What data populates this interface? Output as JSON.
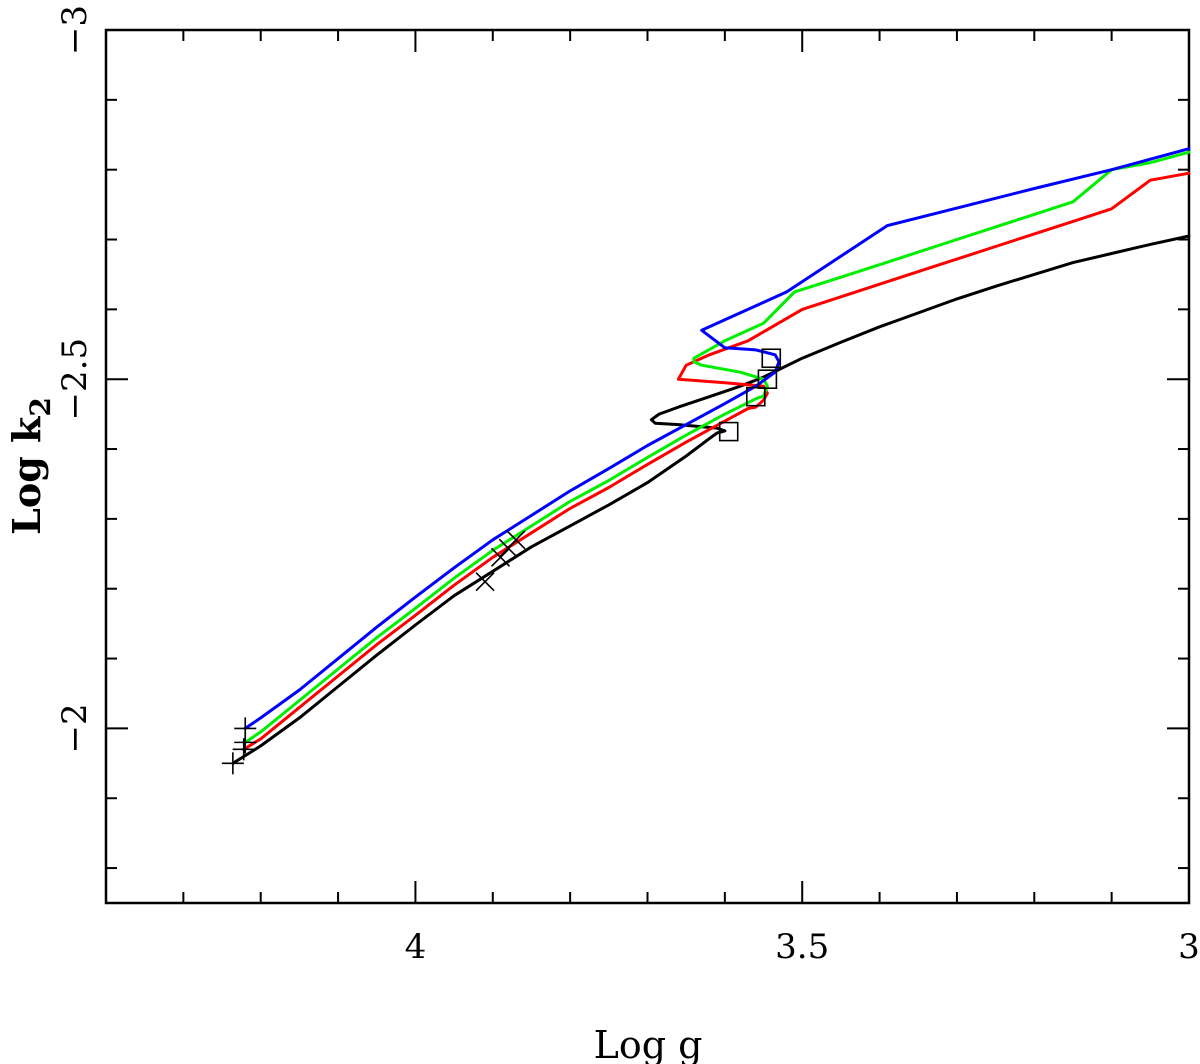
{
  "chart_data": {
    "type": "line",
    "title": "",
    "xlabel": "Log g",
    "ylabel": {
      "base": "Log k",
      "sub": "2"
    },
    "xlim": [
      4.4,
      3.0
    ],
    "ylim": [
      -1.75,
      -3.0
    ],
    "x_major_ticks": [
      4,
      3.5,
      3
    ],
    "x_major_tick_labels": [
      "4",
      "3.5",
      "3"
    ],
    "x_minor_ticks": [
      4.3,
      4.2,
      4.1,
      3.9,
      3.8,
      3.7,
      3.6,
      3.4,
      3.3,
      3.2,
      3.1
    ],
    "y_major_ticks": [
      -2,
      -2.5,
      -3
    ],
    "y_major_tick_labels": [
      "−2",
      "−2.5",
      "−3"
    ],
    "y_minor_ticks": [
      -1.8,
      -1.9,
      -2.1,
      -2.2,
      -2.3,
      -2.4,
      -2.6,
      -2.7,
      -2.8,
      -2.9
    ],
    "grid": false,
    "series": [
      {
        "color": "#000000",
        "points": [
          [
            4.236,
            -1.95
          ],
          [
            4.2,
            -1.975
          ],
          [
            4.15,
            -2.015
          ],
          [
            4.1,
            -2.06
          ],
          [
            4.05,
            -2.105
          ],
          [
            4.0,
            -2.148
          ],
          [
            3.95,
            -2.19
          ],
          [
            3.9,
            -2.225
          ],
          [
            3.85,
            -2.26
          ],
          [
            3.8,
            -2.29
          ],
          [
            3.75,
            -2.32
          ],
          [
            3.7,
            -2.352
          ],
          [
            3.65,
            -2.39
          ],
          [
            3.62,
            -2.415
          ],
          [
            3.61,
            -2.423
          ],
          [
            3.6,
            -2.426
          ],
          [
            3.61,
            -2.43
          ],
          [
            3.66,
            -2.435
          ],
          [
            3.69,
            -2.437
          ],
          [
            3.695,
            -2.442
          ],
          [
            3.685,
            -2.45
          ],
          [
            3.66,
            -2.46
          ],
          [
            3.62,
            -2.475
          ],
          [
            3.58,
            -2.49
          ],
          [
            3.55,
            -2.503
          ],
          [
            3.5,
            -2.53
          ],
          [
            3.45,
            -2.553
          ],
          [
            3.4,
            -2.575
          ],
          [
            3.35,
            -2.595
          ],
          [
            3.3,
            -2.615
          ],
          [
            3.25,
            -2.633
          ],
          [
            3.2,
            -2.65
          ],
          [
            3.15,
            -2.667
          ],
          [
            3.1,
            -2.68
          ],
          [
            3.05,
            -2.693
          ],
          [
            3.0,
            -2.705
          ]
        ]
      },
      {
        "color": "#ff0000",
        "points": [
          [
            4.222,
            -1.97
          ],
          [
            4.2,
            -1.985
          ],
          [
            4.15,
            -2.03
          ],
          [
            4.1,
            -2.075
          ],
          [
            4.05,
            -2.12
          ],
          [
            4.0,
            -2.162
          ],
          [
            3.95,
            -2.205
          ],
          [
            3.9,
            -2.245
          ],
          [
            3.85,
            -2.28
          ],
          [
            3.8,
            -2.315
          ],
          [
            3.75,
            -2.345
          ],
          [
            3.7,
            -2.378
          ],
          [
            3.65,
            -2.41
          ],
          [
            3.6,
            -2.44
          ],
          [
            3.57,
            -2.458
          ],
          [
            3.56,
            -2.46
          ],
          [
            3.55,
            -2.47
          ],
          [
            3.545,
            -2.48
          ],
          [
            3.55,
            -2.49
          ],
          [
            3.6,
            -2.495
          ],
          [
            3.66,
            -2.5
          ],
          [
            3.65,
            -2.52
          ],
          [
            3.62,
            -2.535
          ],
          [
            3.57,
            -2.555
          ],
          [
            3.5,
            -2.6
          ],
          [
            3.45,
            -2.618
          ],
          [
            3.4,
            -2.636
          ],
          [
            3.35,
            -2.654
          ],
          [
            3.3,
            -2.672
          ],
          [
            3.25,
            -2.69
          ],
          [
            3.2,
            -2.708
          ],
          [
            3.15,
            -2.726
          ],
          [
            3.1,
            -2.744
          ],
          [
            3.05,
            -2.785
          ],
          [
            3.0,
            -2.795
          ]
        ]
      },
      {
        "color": "#00ee00",
        "points": [
          [
            4.22,
            -1.98
          ],
          [
            4.2,
            -1.995
          ],
          [
            4.15,
            -2.04
          ],
          [
            4.1,
            -2.085
          ],
          [
            4.05,
            -2.13
          ],
          [
            4.0,
            -2.172
          ],
          [
            3.95,
            -2.215
          ],
          [
            3.9,
            -2.255
          ],
          [
            3.85,
            -2.29
          ],
          [
            3.8,
            -2.325
          ],
          [
            3.75,
            -2.355
          ],
          [
            3.7,
            -2.388
          ],
          [
            3.65,
            -2.42
          ],
          [
            3.6,
            -2.45
          ],
          [
            3.56,
            -2.472
          ],
          [
            3.55,
            -2.476
          ],
          [
            3.545,
            -2.49
          ],
          [
            3.55,
            -2.5
          ],
          [
            3.58,
            -2.51
          ],
          [
            3.63,
            -2.52
          ],
          [
            3.64,
            -2.525
          ],
          [
            3.64,
            -2.53
          ],
          [
            3.6,
            -2.555
          ],
          [
            3.55,
            -2.58
          ],
          [
            3.51,
            -2.625
          ],
          [
            3.45,
            -2.646
          ],
          [
            3.4,
            -2.664
          ],
          [
            3.35,
            -2.682
          ],
          [
            3.3,
            -2.7
          ],
          [
            3.25,
            -2.718
          ],
          [
            3.2,
            -2.736
          ],
          [
            3.15,
            -2.754
          ],
          [
            3.1,
            -2.8
          ],
          [
            3.05,
            -2.81
          ],
          [
            3.0,
            -2.825
          ]
        ]
      },
      {
        "color": "#0000ff",
        "points": [
          [
            4.22,
            -2.0
          ],
          [
            4.2,
            -2.015
          ],
          [
            4.15,
            -2.055
          ],
          [
            4.1,
            -2.1
          ],
          [
            4.05,
            -2.145
          ],
          [
            4.0,
            -2.188
          ],
          [
            3.95,
            -2.23
          ],
          [
            3.9,
            -2.27
          ],
          [
            3.85,
            -2.305
          ],
          [
            3.8,
            -2.34
          ],
          [
            3.75,
            -2.372
          ],
          [
            3.7,
            -2.405
          ],
          [
            3.65,
            -2.435
          ],
          [
            3.6,
            -2.465
          ],
          [
            3.56,
            -2.49
          ],
          [
            3.535,
            -2.51
          ],
          [
            3.53,
            -2.525
          ],
          [
            3.535,
            -2.535
          ],
          [
            3.56,
            -2.542
          ],
          [
            3.6,
            -2.545
          ],
          [
            3.63,
            -2.57
          ],
          [
            3.6,
            -2.585
          ],
          [
            3.55,
            -2.61
          ],
          [
            3.52,
            -2.625
          ],
          [
            3.39,
            -2.72
          ],
          [
            3.3,
            -2.745
          ],
          [
            3.2,
            -2.773
          ],
          [
            3.1,
            -2.8
          ],
          [
            3.0,
            -2.83
          ]
        ]
      }
    ],
    "markers_plus": [
      [
        4.236,
        -1.95
      ],
      [
        4.222,
        -1.97
      ],
      [
        4.22,
        -1.98
      ],
      [
        4.22,
        -2.0
      ]
    ],
    "markers_cross": [
      [
        3.91,
        -2.21
      ],
      [
        3.89,
        -2.245
      ],
      [
        3.88,
        -2.258
      ],
      [
        3.87,
        -2.27
      ]
    ],
    "markers_square": [
      [
        3.595,
        -2.425
      ],
      [
        3.56,
        -2.475
      ],
      [
        3.545,
        -2.5
      ],
      [
        3.54,
        -2.53
      ]
    ]
  }
}
